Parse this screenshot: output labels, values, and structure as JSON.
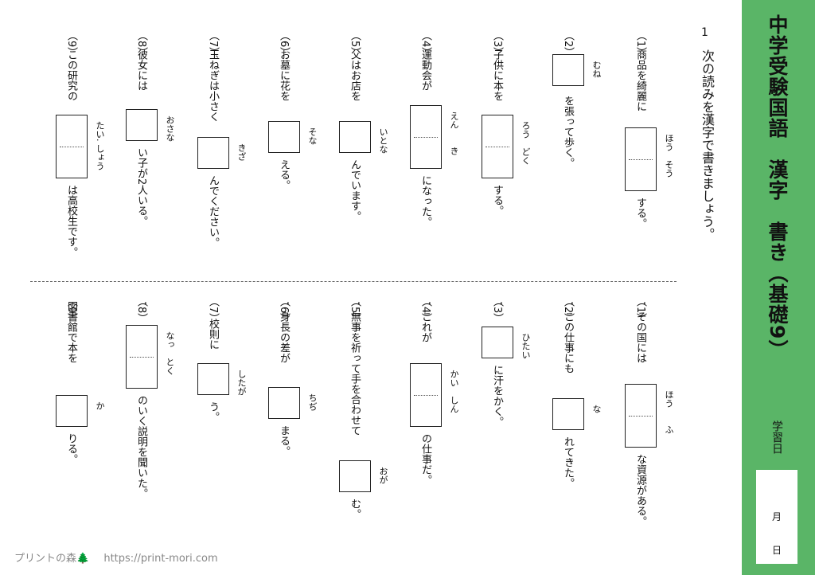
{
  "header": {
    "title": "中学受験国語　漢字　書き（基礎9）",
    "study_label": "学習日",
    "month_label": "月",
    "day_label": "日"
  },
  "instruction": {
    "number": "1",
    "text": "次の読みを漢字で書きましょう。"
  },
  "questions_top": [
    {
      "num": "（1）",
      "before": "商品を綺麗に",
      "reading": "ほう　そう",
      "after": "する。",
      "boxes": 2
    },
    {
      "num": "（2）",
      "before": "",
      "reading": "むね",
      "after": "を張って歩く。",
      "boxes": 1
    },
    {
      "num": "（3）",
      "before": "子供に本を",
      "reading": "ろう　どく",
      "after": "する。",
      "boxes": 2
    },
    {
      "num": "（4）",
      "before": "運動会が",
      "reading": "えん　　き",
      "after": "になった。",
      "boxes": 2
    },
    {
      "num": "（5）",
      "before": "父はお店を",
      "reading": "いとな",
      "after": "んでいます。",
      "boxes": 1
    },
    {
      "num": "（6）",
      "before": "お墓に花を",
      "reading": "そな",
      "after": "える。",
      "boxes": 1
    },
    {
      "num": "（7）",
      "before": "玉ねぎは小さく",
      "reading": "きざ",
      "after": "んでください。",
      "boxes": 1
    },
    {
      "num": "（8）",
      "before": "彼女には",
      "reading": "おさな",
      "after": "い子が2人いる。",
      "boxes": 1
    },
    {
      "num": "（9）",
      "before": "この研究の",
      "reading": "たい. しょう",
      "after": "は高校生です。",
      "boxes": 2
    }
  ],
  "questions_bottom": [
    {
      "num": "（1）",
      "before": "．その国には",
      "reading": "ほう　　ふ",
      "after": "な資源がある。",
      "boxes": 2
    },
    {
      "num": "（2）",
      "before": "．この仕事にも",
      "reading": "な",
      "after": "れてきた。",
      "boxes": 1
    },
    {
      "num": "（3）",
      "before": "．",
      "reading": "ひたい",
      "after": "に汗をかく。",
      "boxes": 1
    },
    {
      "num": "（4）",
      "before": "．これが",
      "reading": "かい　しん",
      "after": "の仕事だ。",
      "boxes": 2
    },
    {
      "num": "（5）",
      "before": "．無事を祈って手を合わせて",
      "reading": "おが",
      "after": "む。",
      "boxes": 1
    },
    {
      "num": "（6）",
      "before": "．身長の差が",
      "reading": "ちぢ",
      "after": "まる。",
      "boxes": 1
    },
    {
      "num": "（7）",
      "before": "校則に",
      "reading": "したが",
      "after": "う。",
      "boxes": 1
    },
    {
      "num": "（8）",
      "before": "．",
      "reading": "なっ　とく",
      "after": "のいく説明を聞いた。",
      "boxes": 2
    },
    {
      "num": "（9）",
      "before": "図書館で本を",
      "reading": "か",
      "after": "りる。",
      "boxes": 1
    }
  ],
  "footer": {
    "brand": "プリントの森🌲",
    "url": "https://print-mori.com"
  }
}
